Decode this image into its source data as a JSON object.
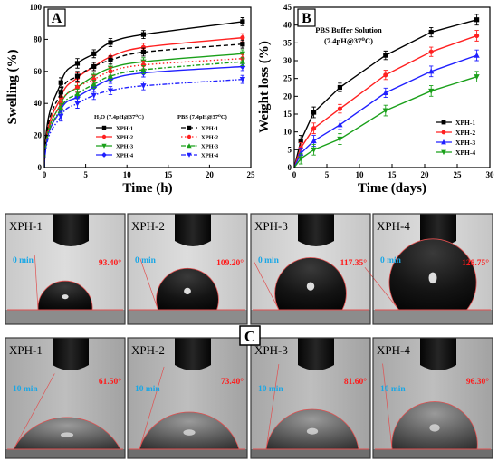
{
  "panel_labels": {
    "a": "A",
    "b": "B",
    "c": "C"
  },
  "colors": {
    "xph1": "#000000",
    "xph2": "#ff2020",
    "xph3": "#2020ff",
    "xph4": "#1aa01a"
  },
  "chart_data": [
    {
      "type": "line",
      "panel": "A",
      "xlabel": "Time (h)",
      "ylabel": "Swelling (%)",
      "xlim": [
        0,
        25
      ],
      "ylim": [
        0,
        100
      ],
      "xticks": [
        0,
        5,
        10,
        15,
        20,
        25
      ],
      "yticks": [
        0,
        20,
        40,
        60,
        80,
        100
      ],
      "grid": false,
      "legend": {
        "position": "bottom-right",
        "group_titles": [
          "H₂O (7.4pH@37⁰C)",
          "PBS (7.4pH@37⁰C)"
        ]
      },
      "x": [
        0,
        2,
        4,
        6,
        8,
        12,
        24
      ],
      "series": [
        {
          "name": "XPH-1",
          "group": "H2O",
          "color": "#000000",
          "marker": "square",
          "dash": "solid",
          "values": [
            0,
            53,
            65,
            71,
            78,
            83,
            91
          ],
          "errors": [
            0,
            3,
            3,
            2.5,
            2.5,
            2.5,
            2.5
          ]
        },
        {
          "name": "XPH-2",
          "group": "H2O",
          "color": "#ff2020",
          "marker": "circle",
          "dash": "solid",
          "values": [
            0,
            44,
            56,
            63,
            69,
            75,
            81
          ],
          "errors": [
            0,
            3,
            3,
            2.5,
            2.5,
            2.5,
            2.5
          ]
        },
        {
          "name": "XPH-3",
          "group": "H2O",
          "color": "#1aa01a",
          "marker": "triangle-down",
          "dash": "solid",
          "values": [
            0,
            40,
            50,
            57,
            62,
            66,
            71
          ],
          "errors": [
            0,
            3,
            3,
            2.5,
            2.5,
            2.5,
            2.5
          ]
        },
        {
          "name": "XPH-4",
          "group": "H2O",
          "color": "#2020ff",
          "marker": "diamond",
          "dash": "solid",
          "values": [
            0,
            36,
            44,
            50,
            55,
            59,
            63
          ],
          "errors": [
            0,
            3,
            3,
            2.5,
            2.5,
            2.5,
            2.5
          ]
        },
        {
          "name": "XPH-1",
          "group": "PBS",
          "color": "#000000",
          "marker": "square",
          "dash": "dash",
          "values": [
            0,
            47,
            57,
            63,
            67,
            72,
            77
          ],
          "errors": [
            0,
            3,
            3,
            2.5,
            2.5,
            2.5,
            2.5
          ]
        },
        {
          "name": "XPH-2",
          "group": "PBS",
          "color": "#ff2020",
          "marker": "circle",
          "dash": "dot",
          "values": [
            0,
            40,
            50,
            55,
            60,
            64,
            68
          ],
          "errors": [
            0,
            3,
            3,
            2.5,
            2.5,
            2.5,
            2.5
          ]
        },
        {
          "name": "XPH-3",
          "group": "PBS",
          "color": "#1aa01a",
          "marker": "triangle-up",
          "dash": "dashdot",
          "values": [
            0,
            37,
            46,
            52,
            57,
            61,
            66
          ],
          "errors": [
            0,
            3,
            3,
            2.5,
            2.5,
            2.5,
            2.5
          ]
        },
        {
          "name": "XPH-4",
          "group": "PBS",
          "color": "#2020ff",
          "marker": "triangle-down",
          "dash": "dashdotdot",
          "values": [
            0,
            32,
            40,
            45,
            48,
            51,
            55
          ],
          "errors": [
            0,
            3,
            3,
            2.5,
            2.5,
            2.5,
            2.5
          ]
        }
      ]
    },
    {
      "type": "line",
      "panel": "B",
      "title": "PBS Buffer Solution",
      "subtitle": "(7.4pH@37⁰C)",
      "xlabel": "Time (days)",
      "ylabel": "Weight loss (%)",
      "xlim": [
        0,
        30
      ],
      "ylim": [
        0,
        45
      ],
      "xticks": [
        0,
        5,
        10,
        15,
        20,
        25,
        30
      ],
      "yticks": [
        0,
        5,
        10,
        15,
        20,
        25,
        30,
        35,
        40,
        45
      ],
      "grid": false,
      "legend": {
        "position": "bottom-right"
      },
      "x": [
        0,
        1,
        3,
        7,
        14,
        21,
        28
      ],
      "series": [
        {
          "name": "XPH-1",
          "color": "#000000",
          "marker": "square",
          "values": [
            0,
            7.5,
            15.5,
            22.5,
            31.5,
            38,
            41.5
          ],
          "errors": [
            0,
            1.5,
            1.5,
            1.2,
            1.2,
            1.3,
            1.5
          ]
        },
        {
          "name": "XPH-2",
          "color": "#ff2020",
          "marker": "circle",
          "values": [
            0,
            5.5,
            11,
            16.5,
            26,
            32.5,
            37
          ],
          "errors": [
            0,
            1.5,
            1.5,
            1.2,
            1.3,
            1.3,
            1.5
          ]
        },
        {
          "name": "XPH-3",
          "color": "#2020ff",
          "marker": "triangle-up",
          "values": [
            0,
            4,
            7.5,
            12,
            21,
            27,
            31.5
          ],
          "errors": [
            0,
            1.5,
            1.5,
            1.3,
            1.3,
            1.5,
            1.5
          ]
        },
        {
          "name": "XPH-4",
          "color": "#1aa01a",
          "marker": "triangle-down",
          "values": [
            0,
            2.5,
            5,
            8,
            16,
            21.5,
            25.5
          ],
          "errors": [
            0,
            1.5,
            1.5,
            1.5,
            1.5,
            1.5,
            1.5
          ]
        }
      ]
    }
  ],
  "contact_angle_photos": {
    "rows": [
      {
        "time_label": "0 min",
        "cells": [
          {
            "sample": "XPH-1",
            "angle": "93.40°",
            "angle_deg": 93.4
          },
          {
            "sample": "XPH-2",
            "angle": "109.20°",
            "angle_deg": 109.2
          },
          {
            "sample": "XPH-3",
            "angle": "117.35°",
            "angle_deg": 117.35
          },
          {
            "sample": "XPH-4",
            "angle": "128.75°",
            "angle_deg": 128.75
          }
        ]
      },
      {
        "time_label": "10 min",
        "cells": [
          {
            "sample": "XPH-1",
            "angle": "61.50°",
            "angle_deg": 61.5
          },
          {
            "sample": "XPH-2",
            "angle": "73.40°",
            "angle_deg": 73.4
          },
          {
            "sample": "XPH-3",
            "angle": "81.60°",
            "angle_deg": 81.6
          },
          {
            "sample": "XPH-4",
            "angle": "96.30°",
            "angle_deg": 96.3
          }
        ]
      }
    ],
    "colors": {
      "angle_text": "#ff1a1a",
      "time_text": "#19a7e6",
      "angle_line": "#e05050"
    }
  }
}
